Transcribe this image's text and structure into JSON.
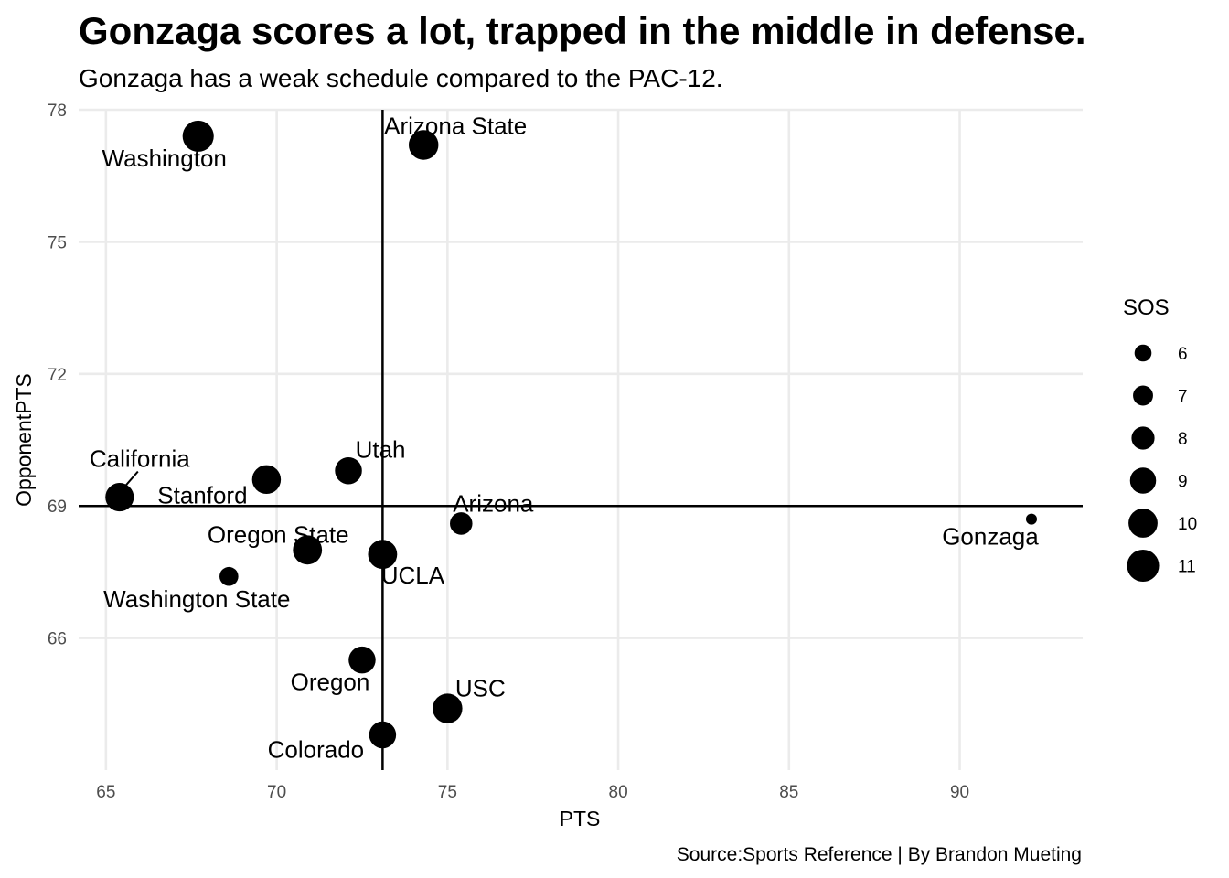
{
  "chart_data": {
    "type": "scatter",
    "title": "Gonzaga scores a lot, trapped in the middle in defense.",
    "subtitle": "Gonzaga has a weak schedule compared to the PAC-12.",
    "xlabel": "PTS",
    "ylabel": "OpponentPTS",
    "caption": "Source:Sports Reference | By Brandon Mueting",
    "xlim": [
      64.2,
      93.6
    ],
    "ylim": [
      63.0,
      78.0
    ],
    "xticks": [
      65,
      70,
      75,
      80,
      85,
      90
    ],
    "yticks": [
      66,
      69,
      72,
      75,
      78
    ],
    "grid": true,
    "size_variable": "SOS",
    "reference_lines": {
      "vertical_x": 73.1,
      "horizontal_y": 69.0
    },
    "legend": {
      "title": "SOS",
      "placement": "right",
      "entries": [
        6,
        7,
        8,
        9,
        10,
        11
      ]
    },
    "points": [
      {
        "name": "Washington",
        "x": 67.7,
        "y": 77.4,
        "sos": 10.7
      },
      {
        "name": "Arizona State",
        "x": 74.3,
        "y": 77.2,
        "sos": 10.2
      },
      {
        "name": "California",
        "x": 65.4,
        "y": 69.2,
        "sos": 9.8
      },
      {
        "name": "Stanford",
        "x": 69.7,
        "y": 69.6,
        "sos": 9.9
      },
      {
        "name": "Utah",
        "x": 72.1,
        "y": 69.8,
        "sos": 9.3
      },
      {
        "name": "Arizona",
        "x": 75.4,
        "y": 68.6,
        "sos": 7.8
      },
      {
        "name": "Oregon State",
        "x": 70.9,
        "y": 68.0,
        "sos": 10.0
      },
      {
        "name": "UCLA",
        "x": 73.1,
        "y": 67.9,
        "sos": 10.0
      },
      {
        "name": "Washington State",
        "x": 68.6,
        "y": 67.4,
        "sos": 6.6
      },
      {
        "name": "Oregon",
        "x": 72.5,
        "y": 65.5,
        "sos": 9.3
      },
      {
        "name": "USC",
        "x": 75.0,
        "y": 64.4,
        "sos": 10.2
      },
      {
        "name": "Colorado",
        "x": 73.1,
        "y": 63.8,
        "sos": 9.3
      },
      {
        "name": "Gonzaga",
        "x": 92.1,
        "y": 68.7,
        "sos": 4.0
      }
    ]
  }
}
